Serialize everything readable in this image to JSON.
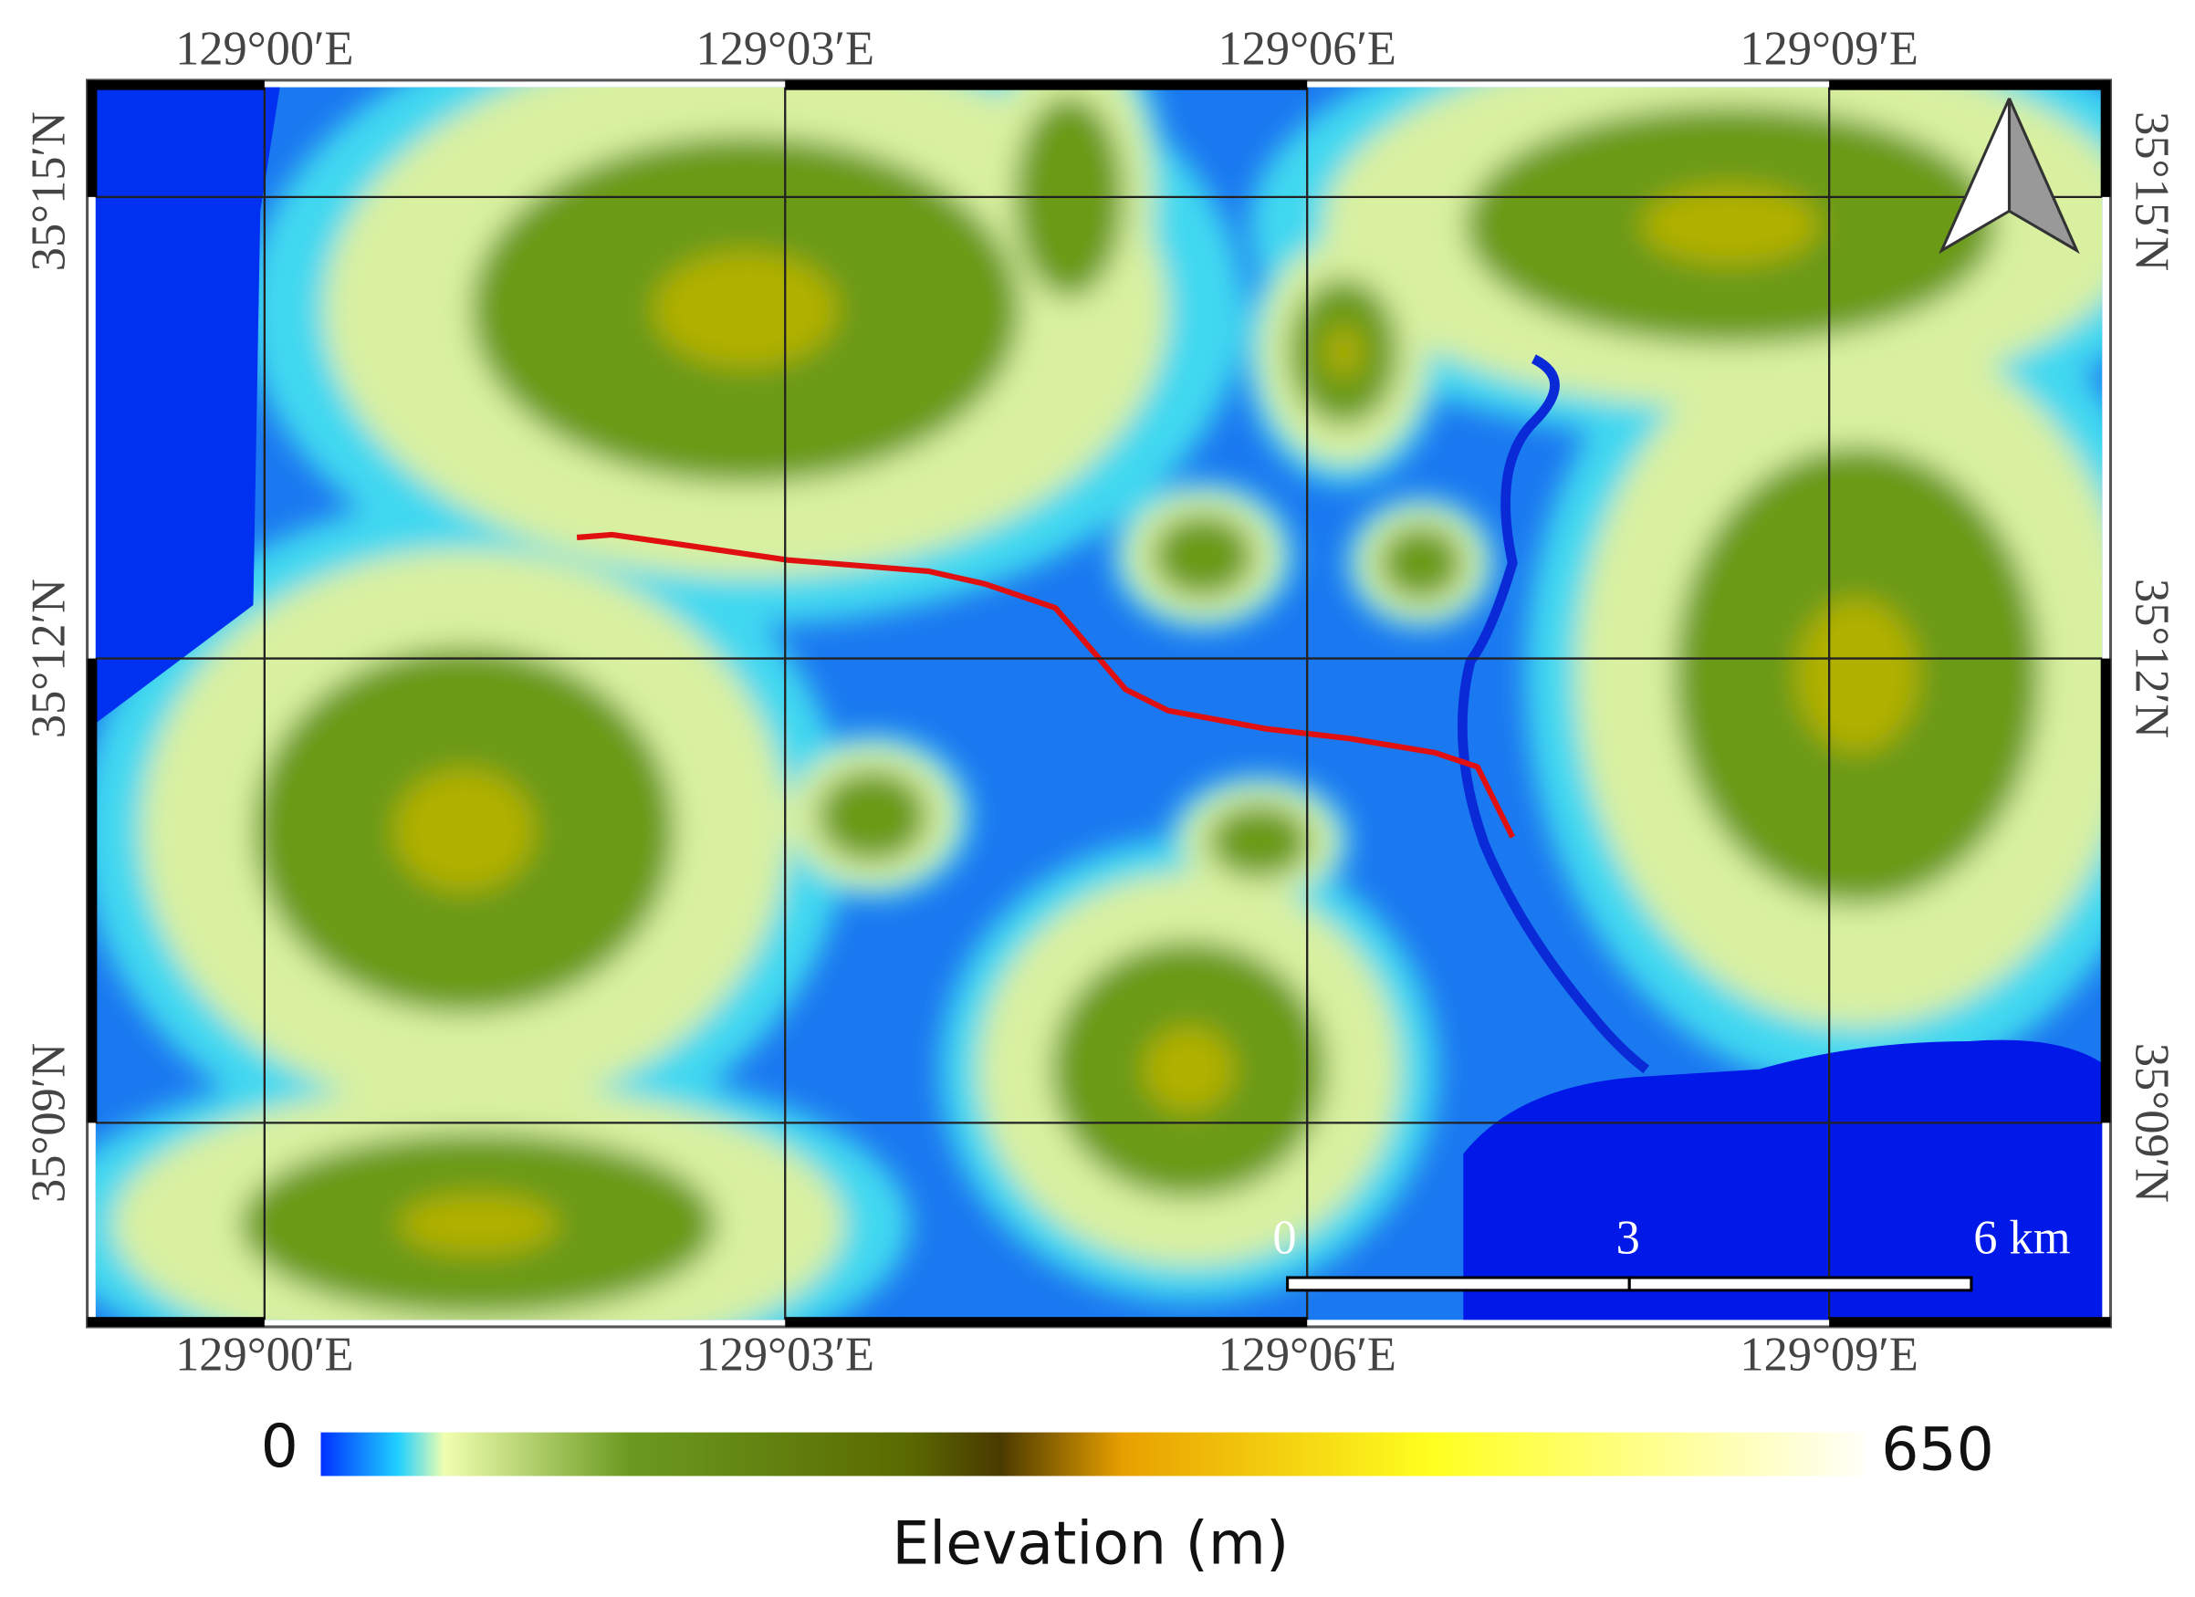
{
  "map": {
    "lon_labels": [
      "129°00′E",
      "129°03′E",
      "129°06′E",
      "129°09′E"
    ],
    "lat_labels": [
      "35°15′N",
      "35°12′N",
      "35°09′N"
    ],
    "scale_bar": {
      "labels": [
        "0",
        "3",
        "6 km"
      ]
    },
    "colorbar": {
      "min": 0,
      "max": 650,
      "title": "Elevation (m)"
    }
  }
}
